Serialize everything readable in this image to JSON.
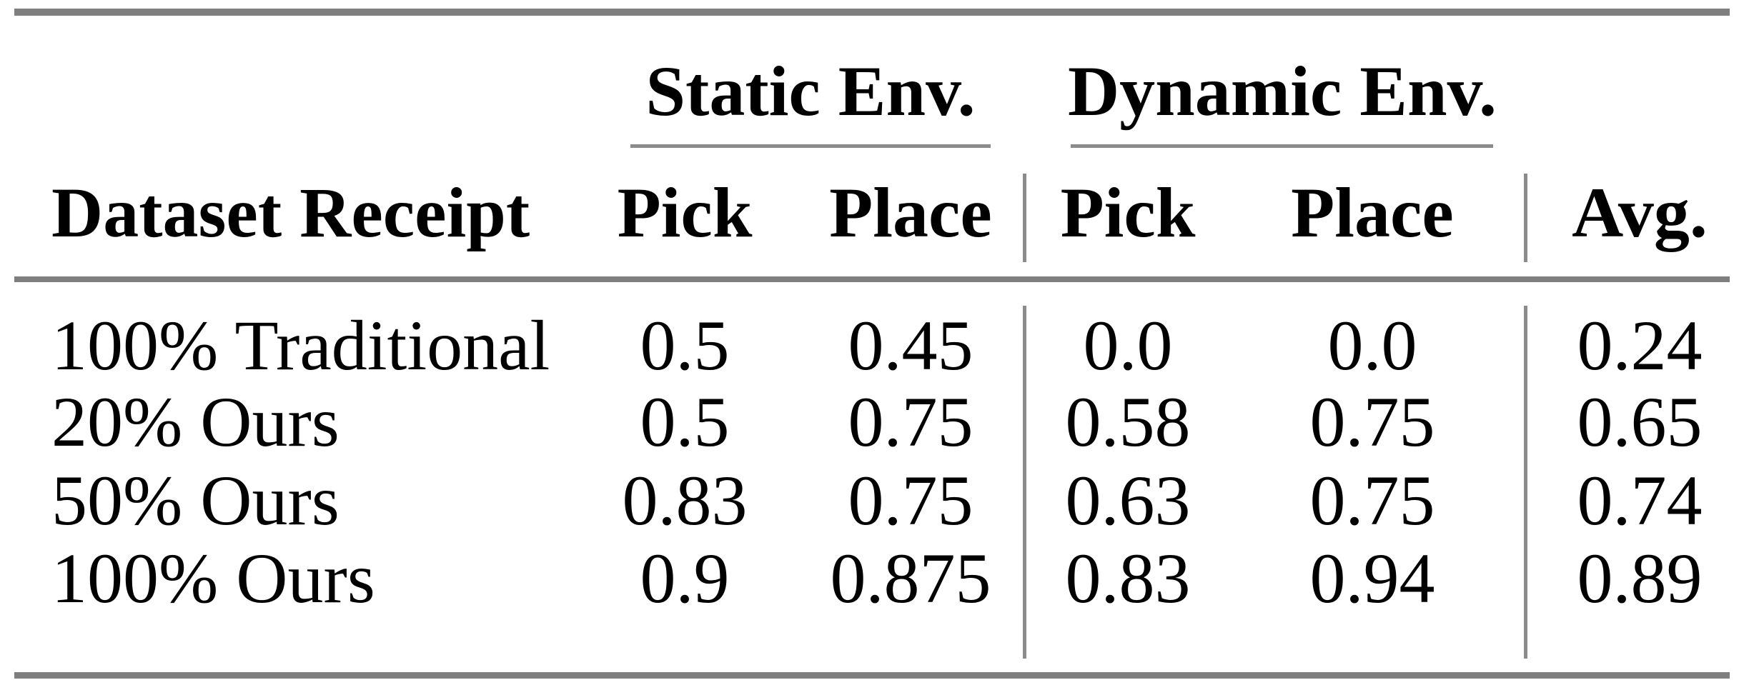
{
  "table": {
    "group_header": {
      "static": "Static Env.",
      "dynamic": "Dynamic Env."
    },
    "column_header": {
      "dataset": "Dataset Receipt",
      "static_pick": "Pick",
      "static_place": "Place",
      "dynamic_pick": "Pick",
      "dynamic_place": "Place",
      "avg": "Avg."
    },
    "rows": [
      {
        "label": "100% Traditional",
        "values": [
          "0.5",
          "0.45",
          "0.0",
          "0.0",
          "0.24"
        ]
      },
      {
        "label": "20% Ours",
        "values": [
          "0.5",
          "0.75",
          "0.58",
          "0.75",
          "0.65"
        ]
      },
      {
        "label": "50% Ours",
        "values": [
          "0.83",
          "0.75",
          "0.63",
          "0.75",
          "0.74"
        ]
      },
      {
        "label": "100% Ours",
        "values": [
          "0.9",
          "0.875",
          "0.83",
          "0.94",
          "0.89"
        ]
      }
    ],
    "colors": {
      "text": "#000000",
      "heavy_rule": "#7f7f7f",
      "light_rule": "#8b8b8b",
      "background": "#ffffff"
    }
  }
}
